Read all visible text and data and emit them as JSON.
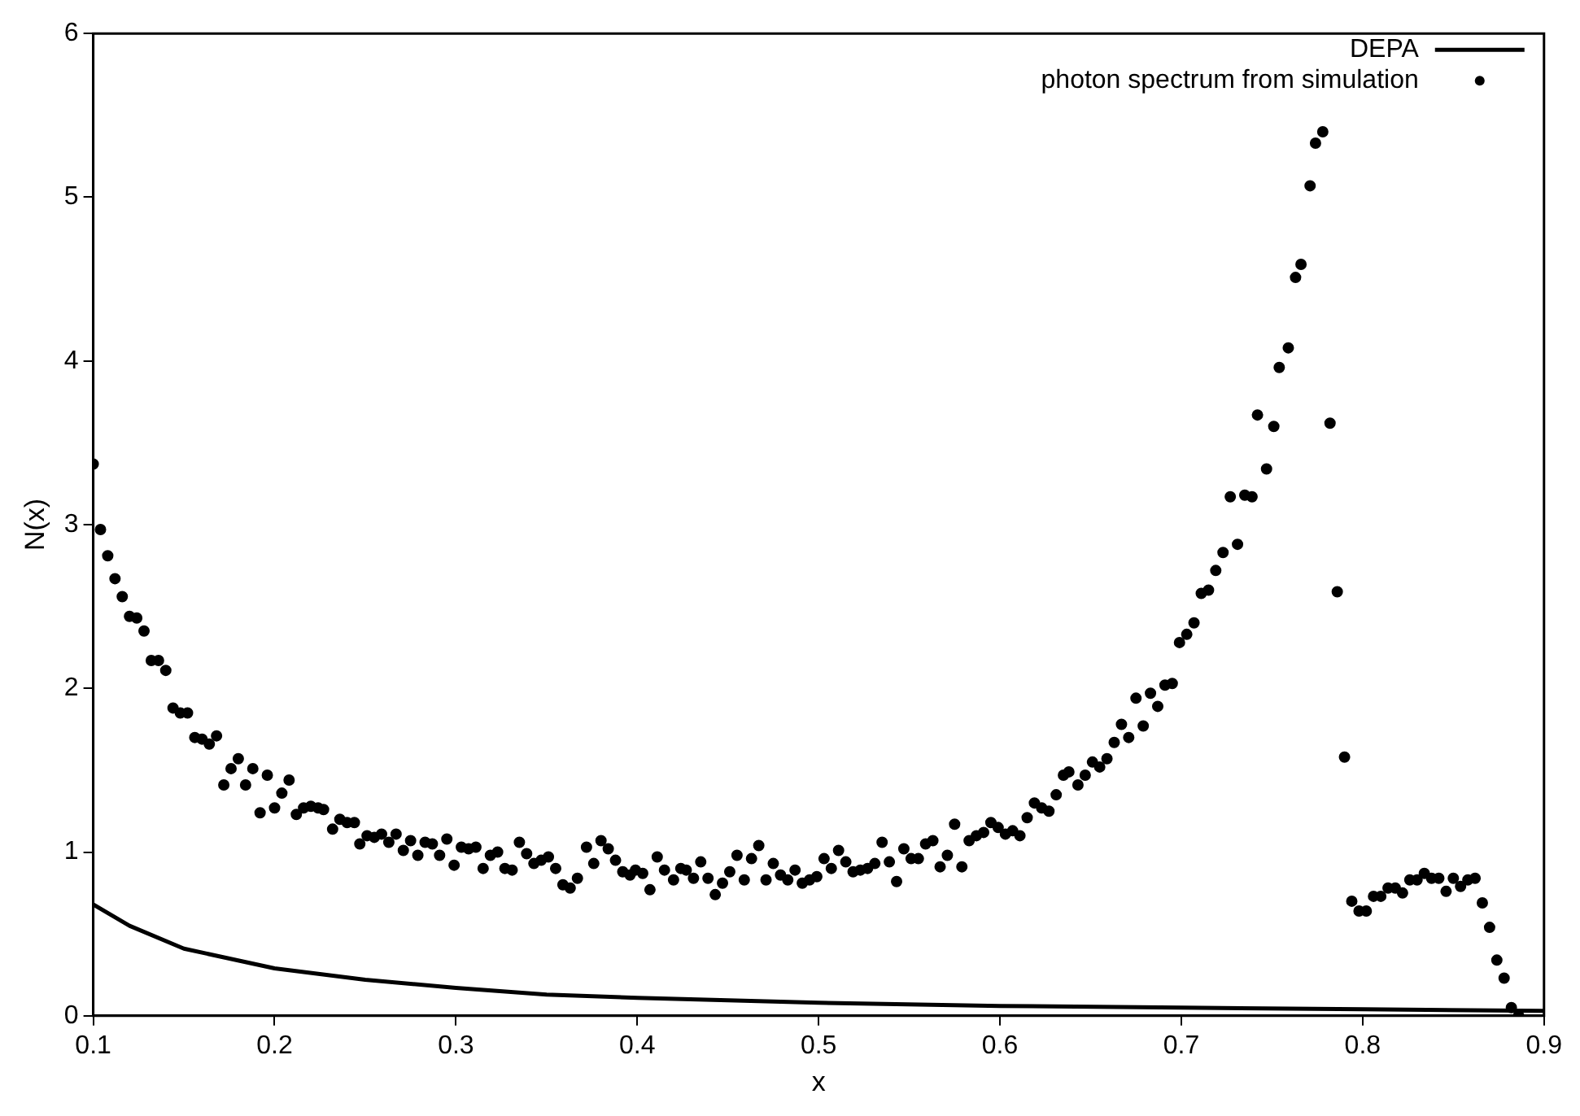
{
  "chart_data": {
    "type": "scatter",
    "xlabel": "x",
    "ylabel": "N(x)",
    "xlim": [
      0.1,
      0.9
    ],
    "ylim": [
      0,
      6
    ],
    "xticks": [
      0.1,
      0.2,
      0.3,
      0.4,
      0.5,
      0.6,
      0.7,
      0.8,
      0.9
    ],
    "yticks": [
      0,
      1,
      2,
      3,
      4,
      5,
      6
    ],
    "grid": false,
    "legend": "top right",
    "series": [
      {
        "name": "DEPA",
        "type": "line",
        "color": "#000000",
        "marker": "none",
        "line_style": "solid",
        "x": [
          0.1,
          0.12,
          0.15,
          0.2,
          0.25,
          0.3,
          0.35,
          0.4,
          0.5,
          0.6,
          0.7,
          0.8,
          0.9
        ],
        "values": [
          0.68,
          0.55,
          0.41,
          0.29,
          0.22,
          0.17,
          0.13,
          0.11,
          0.08,
          0.06,
          0.05,
          0.04,
          0.03
        ]
      },
      {
        "name": "photon spectrum from simulation",
        "type": "scatter",
        "color": "#000000",
        "marker": "circle",
        "x": [
          0.1,
          0.104,
          0.108,
          0.112,
          0.116,
          0.12,
          0.124,
          0.128,
          0.132,
          0.136,
          0.14,
          0.144,
          0.148,
          0.152,
          0.156,
          0.16,
          0.164,
          0.168,
          0.172,
          0.176,
          0.18,
          0.184,
          0.188,
          0.192,
          0.196,
          0.2,
          0.204,
          0.208,
          0.212,
          0.216,
          0.22,
          0.224,
          0.227,
          0.232,
          0.236,
          0.24,
          0.244,
          0.247,
          0.251,
          0.255,
          0.259,
          0.263,
          0.267,
          0.271,
          0.275,
          0.279,
          0.283,
          0.287,
          0.291,
          0.295,
          0.299,
          0.303,
          0.307,
          0.311,
          0.315,
          0.319,
          0.323,
          0.327,
          0.331,
          0.335,
          0.339,
          0.343,
          0.347,
          0.351,
          0.355,
          0.359,
          0.363,
          0.367,
          0.372,
          0.376,
          0.38,
          0.384,
          0.388,
          0.392,
          0.396,
          0.399,
          0.403,
          0.407,
          0.411,
          0.415,
          0.42,
          0.424,
          0.427,
          0.431,
          0.435,
          0.439,
          0.443,
          0.447,
          0.451,
          0.455,
          0.459,
          0.463,
          0.467,
          0.471,
          0.475,
          0.479,
          0.483,
          0.487,
          0.491,
          0.495,
          0.499,
          0.503,
          0.507,
          0.511,
          0.515,
          0.519,
          0.523,
          0.527,
          0.531,
          0.535,
          0.539,
          0.543,
          0.547,
          0.551,
          0.555,
          0.559,
          0.563,
          0.567,
          0.571,
          0.575,
          0.579,
          0.583,
          0.587,
          0.591,
          0.595,
          0.599,
          0.603,
          0.607,
          0.611,
          0.615,
          0.619,
          0.623,
          0.627,
          0.631,
          0.635,
          0.638,
          0.643,
          0.647,
          0.651,
          0.655,
          0.659,
          0.663,
          0.667,
          0.671,
          0.675,
          0.679,
          0.683,
          0.687,
          0.691,
          0.695,
          0.699,
          0.703,
          0.707,
          0.711,
          0.715,
          0.719,
          0.723,
          0.727,
          0.731,
          0.735,
          0.739,
          0.742,
          0.747,
          0.751,
          0.754,
          0.759,
          0.763,
          0.766,
          0.771,
          0.774,
          0.778,
          0.782,
          0.786,
          0.79,
          0.794,
          0.798,
          0.802,
          0.806,
          0.81,
          0.814,
          0.818,
          0.822,
          0.826,
          0.83,
          0.834,
          0.838,
          0.842,
          0.846,
          0.85,
          0.854,
          0.858,
          0.862,
          0.866,
          0.87,
          0.874,
          0.878,
          0.882,
          0.886
        ],
        "values": [
          3.37,
          2.97,
          2.81,
          2.67,
          2.56,
          2.44,
          2.43,
          2.35,
          2.17,
          2.17,
          2.11,
          1.88,
          1.85,
          1.85,
          1.7,
          1.69,
          1.66,
          1.71,
          1.41,
          1.51,
          1.57,
          1.41,
          1.51,
          1.24,
          1.47,
          1.27,
          1.36,
          1.44,
          1.23,
          1.27,
          1.28,
          1.27,
          1.26,
          1.14,
          1.2,
          1.18,
          1.18,
          1.05,
          1.1,
          1.09,
          1.11,
          1.06,
          1.11,
          1.01,
          1.07,
          0.98,
          1.06,
          1.05,
          0.98,
          1.08,
          0.92,
          1.03,
          1.02,
          1.03,
          0.9,
          0.98,
          1.0,
          0.9,
          0.89,
          1.06,
          0.99,
          0.93,
          0.95,
          0.97,
          0.9,
          0.8,
          0.78,
          0.84,
          1.03,
          0.93,
          1.07,
          1.02,
          0.95,
          0.88,
          0.86,
          0.89,
          0.87,
          0.77,
          0.97,
          0.89,
          0.83,
          0.9,
          0.89,
          0.84,
          0.94,
          0.84,
          0.74,
          0.81,
          0.88,
          0.98,
          0.83,
          0.96,
          1.04,
          0.83,
          0.93,
          0.86,
          0.83,
          0.89,
          0.81,
          0.83,
          0.85,
          0.96,
          0.9,
          1.01,
          0.94,
          0.88,
          0.89,
          0.9,
          0.93,
          1.06,
          0.94,
          0.82,
          1.02,
          0.96,
          0.96,
          1.05,
          1.07,
          0.91,
          0.98,
          1.17,
          0.91,
          1.07,
          1.1,
          1.12,
          1.18,
          1.15,
          1.11,
          1.13,
          1.1,
          1.21,
          1.3,
          1.27,
          1.25,
          1.35,
          1.47,
          1.49,
          1.41,
          1.47,
          1.55,
          1.52,
          1.57,
          1.67,
          1.78,
          1.7,
          1.94,
          1.77,
          1.97,
          1.89,
          2.02,
          2.03,
          2.28,
          2.33,
          2.4,
          2.58,
          2.6,
          2.72,
          2.83,
          3.17,
          2.88,
          3.18,
          3.17,
          3.67,
          3.34,
          3.6,
          3.96,
          4.08,
          4.51,
          4.59,
          5.07,
          5.33,
          5.4,
          3.62,
          2.59,
          1.58,
          0.7,
          0.64,
          0.64,
          0.73,
          0.73,
          0.78,
          0.78,
          0.75,
          0.83,
          0.83,
          0.87,
          0.84,
          0.84,
          0.76,
          0.84,
          0.79,
          0.83,
          0.84,
          0.69,
          0.54,
          0.34,
          0.23,
          0.05,
          0
        ]
      }
    ]
  }
}
